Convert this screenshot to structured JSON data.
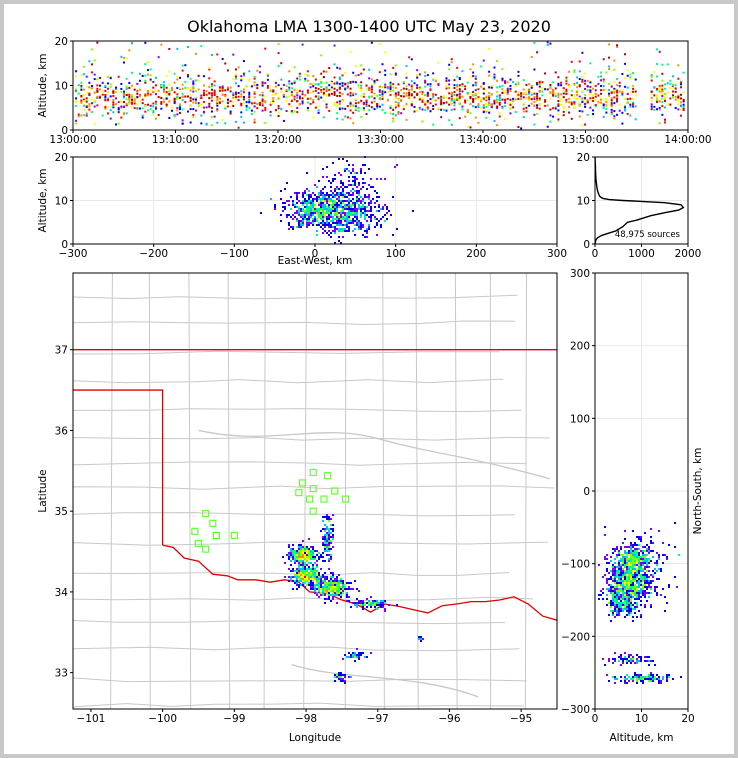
{
  "title": "Oklahoma LMA 1300-1400 UTC May 23, 2020",
  "colors": {
    "map_lines": "#c8c8c8",
    "state_border": "#e00000",
    "stations": "#66ff33",
    "frame": "#c8c8c8"
  },
  "chart_data": [
    {
      "name": "altitude-time",
      "type": "scatter",
      "xlabel": "",
      "ylabel": "Altitude, km",
      "xlim": [
        "13:00:00",
        "14:00:00"
      ],
      "xticks": [
        "13:00:00",
        "13:10:00",
        "13:20:00",
        "13:30:00",
        "13:40:00",
        "13:50:00",
        "14:00:00"
      ],
      "ylim": [
        0,
        20
      ],
      "yticks": [
        "0",
        "10",
        "20"
      ],
      "gaps_minutes": [
        55.5
      ]
    },
    {
      "name": "altitude-east-west",
      "type": "heatmap",
      "xlabel": "East-West, km",
      "ylabel": "Altitude, km",
      "xlim": [
        -300,
        300
      ],
      "xticks": [
        "−300",
        "−200",
        "−100",
        "0",
        "100",
        "200",
        "300"
      ],
      "ylim": [
        0,
        20
      ],
      "yticks": [
        "0",
        "10",
        "20"
      ],
      "clusters": [
        {
          "x": 0,
          "y": 8,
          "sx": 20,
          "sy": 2.0,
          "n": 500
        },
        {
          "x": 40,
          "y": 7,
          "sx": 22,
          "sy": 2.5,
          "n": 450
        },
        {
          "x": 40,
          "y": 12,
          "sx": 20,
          "sy": 4.5,
          "n": 200
        }
      ]
    },
    {
      "name": "altitude-histogram",
      "type": "line",
      "xlabel": "",
      "ylabel": "",
      "xlim": [
        0,
        2000
      ],
      "xticks": [
        "0",
        "1000",
        "2000"
      ],
      "ylim": [
        0,
        20
      ],
      "yticks": [
        "0",
        "10",
        "20"
      ],
      "annotation": "48,975 sources",
      "x": [
        0,
        20,
        60,
        150,
        300,
        450,
        600,
        700,
        900,
        1200,
        1500,
        1800,
        1900,
        1850,
        1500,
        1000,
        600,
        300,
        160,
        100,
        60,
        40,
        30,
        20,
        15,
        10,
        8,
        5,
        3
      ],
      "y": [
        0,
        1,
        1.5,
        2,
        2.5,
        3,
        4,
        5,
        5.5,
        6.5,
        7.2,
        7.8,
        8.4,
        9,
        9.5,
        9.8,
        10,
        10.2,
        10.5,
        11,
        12,
        13,
        14,
        15,
        16,
        17,
        18,
        19,
        20
      ]
    },
    {
      "name": "plan-view-map",
      "type": "scatter",
      "xlabel": "Longitude",
      "ylabel": "Latitude",
      "xlim": [
        -101.25,
        -94.5
      ],
      "xticks": [
        "−101",
        "−100",
        "−99",
        "−98",
        "−97",
        "−96",
        "−95"
      ],
      "ylim": [
        32.55,
        37.95
      ],
      "yticks": [
        "33",
        "34",
        "35",
        "36",
        "37"
      ],
      "stations": [
        [
          -97.9,
          35.48
        ],
        [
          -97.7,
          35.44
        ],
        [
          -98.05,
          35.35
        ],
        [
          -97.9,
          35.28
        ],
        [
          -98.1,
          35.23
        ],
        [
          -97.6,
          35.25
        ],
        [
          -97.45,
          35.15
        ],
        [
          -97.75,
          35.15
        ],
        [
          -97.95,
          35.15
        ],
        [
          -97.9,
          35.0
        ],
        [
          -99.4,
          34.97
        ],
        [
          -99.3,
          34.85
        ],
        [
          -99.55,
          34.75
        ],
        [
          -99.25,
          34.7
        ],
        [
          -99.0,
          34.7
        ],
        [
          -99.5,
          34.6
        ],
        [
          -99.4,
          34.53
        ]
      ],
      "clusters": [
        {
          "x": -98.05,
          "y": 34.45,
          "sx": 0.09,
          "sy": 0.06,
          "n": 380
        },
        {
          "x": -98.0,
          "y": 34.2,
          "sx": 0.1,
          "sy": 0.06,
          "n": 400
        },
        {
          "x": -97.65,
          "y": 34.05,
          "sx": 0.12,
          "sy": 0.06,
          "n": 380
        },
        {
          "x": -97.7,
          "y": 34.65,
          "sx": 0.04,
          "sy": 0.15,
          "n": 130
        },
        {
          "x": -97.1,
          "y": 33.85,
          "sx": 0.15,
          "sy": 0.03,
          "n": 100
        },
        {
          "x": -97.3,
          "y": 33.2,
          "sx": 0.07,
          "sy": 0.03,
          "n": 40
        },
        {
          "x": -97.5,
          "y": 32.95,
          "sx": 0.06,
          "sy": 0.03,
          "n": 35
        },
        {
          "x": -96.4,
          "y": 33.42,
          "sx": 0.03,
          "sy": 0.02,
          "n": 8
        }
      ]
    },
    {
      "name": "north-south-altitude",
      "type": "heatmap",
      "xlabel": "Altitude, km",
      "ylabel": "North-South, km",
      "xlim": [
        0,
        20
      ],
      "xticks": [
        "0",
        "10",
        "20"
      ],
      "ylim": [
        -300,
        300
      ],
      "yticks": [
        "−300",
        "−200",
        "−100",
        "0",
        "100",
        "200",
        "300"
      ],
      "clusters": [
        {
          "x": 8,
          "y": -95,
          "sx": 2.0,
          "sy": 10,
          "n": 350
        },
        {
          "x": 7.5,
          "y": -125,
          "sx": 2.2,
          "sy": 14,
          "n": 500
        },
        {
          "x": 6,
          "y": -150,
          "sx": 2.0,
          "sy": 12,
          "n": 300
        },
        {
          "x": 10,
          "y": -110,
          "sx": 4,
          "sy": 25,
          "n": 200
        },
        {
          "x": 8,
          "y": -232,
          "sx": 2.5,
          "sy": 4,
          "n": 70
        },
        {
          "x": 10,
          "y": -258,
          "sx": 3.5,
          "sy": 3,
          "n": 130
        }
      ]
    }
  ]
}
